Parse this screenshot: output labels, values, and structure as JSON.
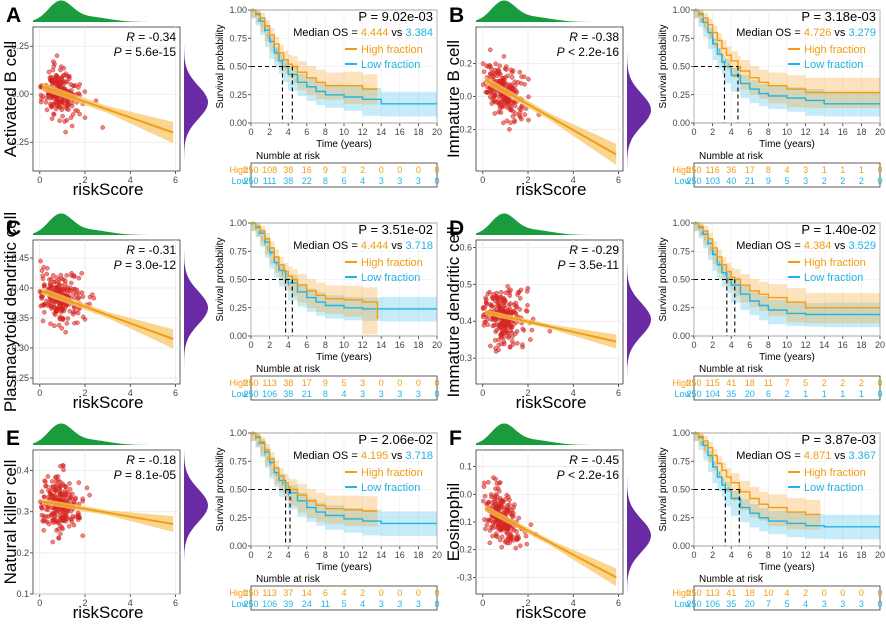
{
  "figure": {
    "colors": {
      "high": "#f39c12",
      "low": "#1fb4e6",
      "scatter_point": "#e41a1c",
      "regression_band": "#f7c76a",
      "density_top": "#1a9c3e",
      "density_right": "#6a2aa6"
    },
    "common": {
      "scatter_xlabel": "riskScore",
      "km_ylabel": "Survival probability",
      "km_xlabel": "Time (years)",
      "km_xticks": [
        0,
        2,
        4,
        6,
        8,
        10,
        12,
        14,
        16,
        18,
        20
      ],
      "km_yticks": [
        "0.00",
        "0.25",
        "0.50",
        "0.75",
        "1.00"
      ],
      "scatter_xticks": [
        0,
        2,
        4,
        6
      ],
      "median_prefix": "Median OS = ",
      "median_vs": " vs ",
      "legend_high": "High fraction",
      "legend_low": "Low fraction",
      "risk_title": "Numble at risk",
      "risk_high_label": "High",
      "risk_low_label": "Low",
      "r_prefix": "R",
      "p_prefix": "P"
    },
    "panels": [
      {
        "label": "A",
        "cell": "Activated B cell",
        "r": "= -0.34",
        "p": "= 5.6e-15",
        "km_p": "P = 9.02e-03",
        "median_high": "4.444",
        "median_low": "3.384",
        "risk_high": [
          250,
          108,
          38,
          16,
          9,
          3,
          2,
          0,
          0,
          0,
          0
        ],
        "risk_low": [
          250,
          111,
          38,
          22,
          8,
          6,
          4,
          3,
          3,
          3,
          0
        ]
      },
      {
        "label": "B",
        "cell": "Immature B cell",
        "r": "= -0.38",
        "p": "< 2.2e-16",
        "km_p": "P = 3.18e-03",
        "median_high": "4.726",
        "median_low": "3.279",
        "risk_high": [
          250,
          116,
          36,
          17,
          8,
          4,
          3,
          1,
          1,
          1,
          0
        ],
        "risk_low": [
          250,
          103,
          40,
          21,
          9,
          5,
          3,
          2,
          2,
          2,
          0
        ]
      },
      {
        "label": "C",
        "cell": "Plasmacytoid dendritic cell",
        "r": "= -0.31",
        "p": "= 3.0e-12",
        "km_p": "P = 3.51e-02",
        "median_high": "4.444",
        "median_low": "3.718",
        "risk_high": [
          250,
          113,
          38,
          17,
          9,
          5,
          3,
          0,
          0,
          0,
          0
        ],
        "risk_low": [
          250,
          106,
          38,
          21,
          8,
          4,
          3,
          3,
          3,
          3,
          0
        ]
      },
      {
        "label": "D",
        "cell": "Immature dendritic cell",
        "r": "= -0.29",
        "p": "= 3.5e-11",
        "km_p": "P = 1.40e-02",
        "median_high": "4.384",
        "median_low": "3.529",
        "risk_high": [
          250,
          115,
          41,
          18,
          11,
          7,
          5,
          2,
          2,
          2,
          0
        ],
        "risk_low": [
          250,
          104,
          35,
          20,
          6,
          2,
          1,
          1,
          1,
          1,
          0
        ]
      },
      {
        "label": "E",
        "cell": "Natural killer cell",
        "r": "= -0.18",
        "p": "= 8.1e-05",
        "km_p": "P = 2.06e-02",
        "median_high": "4.195",
        "median_low": "3.718",
        "risk_high": [
          250,
          113,
          37,
          14,
          6,
          4,
          2,
          0,
          0,
          0,
          0
        ],
        "risk_low": [
          250,
          106,
          39,
          24,
          11,
          5,
          4,
          3,
          3,
          3,
          0
        ]
      },
      {
        "label": "F",
        "cell": "Eosinophil",
        "r": "= -0.45",
        "p": "< 2.2e-16",
        "km_p": "P = 3.87e-03",
        "median_high": "4.871",
        "median_low": "3.367",
        "risk_high": [
          250,
          113,
          41,
          18,
          10,
          4,
          2,
          0,
          0,
          0,
          0
        ],
        "risk_low": [
          250,
          106,
          35,
          20,
          7,
          5,
          4,
          3,
          3,
          3,
          0
        ]
      }
    ]
  },
  "chart_data": [
    {
      "type": "scatter",
      "panel": "A",
      "title": "",
      "xlabel": "riskScore",
      "ylabel": "Activated B cell",
      "xlim": [
        -0.3,
        6.2
      ],
      "ylim": [
        -0.4,
        0.35
      ],
      "yticks": [
        -0.25,
        0.0,
        0.25
      ],
      "regression": {
        "x": [
          0.1,
          5.9
        ],
        "y": [
          0.04,
          -0.2
        ],
        "ci": 0.035
      },
      "r": -0.34,
      "p": "5.6e-15",
      "n_points": "~500"
    },
    {
      "type": "line",
      "panel": "A",
      "subtype": "kaplan-meier",
      "xlabel": "Time (years)",
      "ylabel": "Survival probability",
      "xlim": [
        0,
        20
      ],
      "ylim": [
        0,
        1
      ],
      "series": [
        {
          "name": "High fraction",
          "x": [
            0,
            0.5,
            1,
            1.5,
            2,
            2.5,
            3,
            3.5,
            4,
            4.44,
            5,
            6,
            7,
            8,
            10,
            12,
            13.6
          ],
          "y": [
            1,
            0.97,
            0.93,
            0.86,
            0.78,
            0.7,
            0.62,
            0.56,
            0.52,
            0.5,
            0.45,
            0.4,
            0.36,
            0.33,
            0.33,
            0.3,
            0.3
          ]
        },
        {
          "name": "Low fraction",
          "x": [
            0,
            0.5,
            1,
            1.5,
            2,
            2.5,
            3,
            3.38,
            4,
            5,
            6,
            7,
            8,
            10,
            12,
            14,
            20
          ],
          "y": [
            1,
            0.96,
            0.9,
            0.82,
            0.72,
            0.62,
            0.55,
            0.5,
            0.43,
            0.36,
            0.32,
            0.28,
            0.25,
            0.23,
            0.21,
            0.17,
            0.17
          ]
        }
      ],
      "median_os": {
        "high": 4.444,
        "low": 3.384
      },
      "p": "9.02e-03"
    },
    {
      "type": "scatter",
      "panel": "B",
      "title": "",
      "xlabel": "riskScore",
      "ylabel": "Immature B cell",
      "xlim": [
        -0.3,
        6.2
      ],
      "ylim": [
        -0.45,
        0.42
      ],
      "yticks": [
        -0.2,
        0.0,
        0.2
      ],
      "regression": {
        "x": [
          0.1,
          5.9
        ],
        "y": [
          0.1,
          -0.35
        ],
        "ci": 0.04
      },
      "r": -0.38,
      "p": "< 2.2e-16",
      "n_points": "~500"
    },
    {
      "type": "line",
      "panel": "B",
      "subtype": "kaplan-meier",
      "xlabel": "Time (years)",
      "ylabel": "Survival probability",
      "xlim": [
        0,
        20
      ],
      "ylim": [
        0,
        1
      ],
      "series": [
        {
          "name": "High fraction",
          "x": [
            0,
            0.5,
            1,
            1.5,
            2,
            2.5,
            3,
            3.5,
            4,
            4.73,
            5,
            6,
            7,
            8,
            10,
            12,
            20
          ],
          "y": [
            1,
            0.97,
            0.93,
            0.87,
            0.8,
            0.73,
            0.66,
            0.6,
            0.55,
            0.5,
            0.46,
            0.4,
            0.36,
            0.33,
            0.3,
            0.27,
            0.27
          ]
        },
        {
          "name": "Low fraction",
          "x": [
            0,
            0.5,
            1,
            1.5,
            2,
            2.5,
            3,
            3.28,
            4,
            5,
            6,
            7,
            8,
            10,
            12,
            14,
            20
          ],
          "y": [
            1,
            0.96,
            0.89,
            0.8,
            0.7,
            0.61,
            0.54,
            0.5,
            0.42,
            0.35,
            0.3,
            0.26,
            0.24,
            0.22,
            0.2,
            0.17,
            0.17
          ]
        }
      ],
      "median_os": {
        "high": 4.726,
        "low": 3.279
      },
      "p": "3.18e-03"
    },
    {
      "type": "scatter",
      "panel": "C",
      "title": "",
      "xlabel": "riskScore",
      "ylabel": "Plasmacytoid dendritic cell",
      "xlim": [
        -0.3,
        6.2
      ],
      "ylim": [
        0.24,
        0.48
      ],
      "yticks": [
        0.25,
        0.3,
        0.35,
        0.4,
        0.45
      ],
      "regression": {
        "x": [
          0.1,
          5.9
        ],
        "y": [
          0.395,
          0.315
        ],
        "ci": 0.01
      },
      "r": -0.31,
      "p": "3.0e-12",
      "n_points": "~500"
    },
    {
      "type": "line",
      "panel": "C",
      "subtype": "kaplan-meier",
      "xlabel": "Time (years)",
      "ylabel": "Survival probability",
      "xlim": [
        0,
        20
      ],
      "ylim": [
        0,
        1
      ],
      "series": [
        {
          "name": "High fraction",
          "x": [
            0,
            0.5,
            1,
            1.5,
            2,
            2.5,
            3,
            3.5,
            4,
            4.44,
            5,
            6,
            7,
            8,
            10,
            12,
            13.6
          ],
          "y": [
            1,
            0.97,
            0.93,
            0.86,
            0.78,
            0.7,
            0.63,
            0.57,
            0.53,
            0.5,
            0.45,
            0.4,
            0.36,
            0.33,
            0.32,
            0.3,
            0.15
          ]
        },
        {
          "name": "Low fraction",
          "x": [
            0,
            0.5,
            1,
            1.5,
            2,
            2.5,
            3,
            3.72,
            4,
            5,
            6,
            7,
            8,
            10,
            12,
            14,
            20
          ],
          "y": [
            1,
            0.96,
            0.91,
            0.83,
            0.74,
            0.65,
            0.58,
            0.5,
            0.47,
            0.39,
            0.34,
            0.3,
            0.27,
            0.25,
            0.24,
            0.24,
            0.24
          ]
        }
      ],
      "median_os": {
        "high": 4.444,
        "low": 3.718
      },
      "p": "3.51e-02"
    },
    {
      "type": "scatter",
      "panel": "D",
      "title": "",
      "xlabel": "riskScore",
      "ylabel": "Immature dendritic cell",
      "xlim": [
        -0.3,
        6.2
      ],
      "ylim": [
        0.23,
        0.62
      ],
      "yticks": [
        0.3,
        0.4,
        0.5,
        0.6
      ],
      "regression": {
        "x": [
          0.1,
          5.9
        ],
        "y": [
          0.425,
          0.345
        ],
        "ci": 0.012
      },
      "r": -0.29,
      "p": "3.5e-11",
      "n_points": "~500"
    },
    {
      "type": "line",
      "panel": "D",
      "subtype": "kaplan-meier",
      "xlabel": "Time (years)",
      "ylabel": "Survival probability",
      "xlim": [
        0,
        20
      ],
      "ylim": [
        0,
        1
      ],
      "series": [
        {
          "name": "High fraction",
          "x": [
            0,
            0.5,
            1,
            1.5,
            2,
            2.5,
            3,
            3.5,
            4,
            4.38,
            5,
            6,
            7,
            8,
            10,
            12,
            20
          ],
          "y": [
            1,
            0.97,
            0.93,
            0.86,
            0.78,
            0.7,
            0.63,
            0.57,
            0.52,
            0.5,
            0.45,
            0.4,
            0.37,
            0.34,
            0.3,
            0.25,
            0.25
          ]
        },
        {
          "name": "Low fraction",
          "x": [
            0,
            0.5,
            1,
            1.5,
            2,
            2.5,
            3,
            3.53,
            4,
            5,
            6,
            7,
            8,
            10,
            12,
            14,
            20
          ],
          "y": [
            1,
            0.96,
            0.9,
            0.82,
            0.72,
            0.63,
            0.56,
            0.5,
            0.45,
            0.37,
            0.31,
            0.27,
            0.23,
            0.2,
            0.19,
            0.19,
            0.19
          ]
        }
      ],
      "median_os": {
        "high": 4.384,
        "low": 3.529
      },
      "p": "1.40e-02"
    },
    {
      "type": "scatter",
      "panel": "E",
      "title": "",
      "xlabel": "riskScore",
      "ylabel": "Natural killer cell",
      "xlim": [
        -0.3,
        6.2
      ],
      "ylim": [
        0.1,
        0.45
      ],
      "yticks": [
        0.1,
        0.2,
        0.3,
        0.4
      ],
      "regression": {
        "x": [
          0.1,
          5.9
        ],
        "y": [
          0.325,
          0.27
        ],
        "ci": 0.012
      },
      "r": -0.18,
      "p": "8.1e-05",
      "n_points": "~500"
    },
    {
      "type": "line",
      "panel": "E",
      "subtype": "kaplan-meier",
      "xlabel": "Time (years)",
      "ylabel": "Survival probability",
      "xlim": [
        0,
        20
      ],
      "ylim": [
        0,
        1
      ],
      "series": [
        {
          "name": "High fraction",
          "x": [
            0,
            0.5,
            1,
            1.5,
            2,
            2.5,
            3,
            3.5,
            4,
            4.2,
            5,
            6,
            7,
            8,
            10,
            12,
            13.6
          ],
          "y": [
            1,
            0.97,
            0.92,
            0.85,
            0.77,
            0.69,
            0.62,
            0.56,
            0.52,
            0.5,
            0.45,
            0.4,
            0.36,
            0.33,
            0.32,
            0.31,
            0.31
          ]
        },
        {
          "name": "Low fraction",
          "x": [
            0,
            0.5,
            1,
            1.5,
            2,
            2.5,
            3,
            3.72,
            4,
            5,
            6,
            7,
            8,
            10,
            12,
            14,
            20
          ],
          "y": [
            1,
            0.96,
            0.91,
            0.83,
            0.74,
            0.65,
            0.58,
            0.5,
            0.47,
            0.4,
            0.34,
            0.3,
            0.27,
            0.24,
            0.22,
            0.2,
            0.2
          ]
        }
      ],
      "median_os": {
        "high": 4.195,
        "low": 3.718
      },
      "p": "2.06e-02"
    },
    {
      "type": "scatter",
      "panel": "F",
      "title": "",
      "xlabel": "riskScore",
      "ylabel": "Eosinophil",
      "xlim": [
        -0.3,
        6.2
      ],
      "ylim": [
        -0.36,
        0.16
      ],
      "yticks": [
        -0.3,
        -0.2,
        -0.1,
        0.0,
        0.1
      ],
      "regression": {
        "x": [
          0.1,
          5.9
        ],
        "y": [
          -0.05,
          -0.3
        ],
        "ci": 0.02
      },
      "r": -0.45,
      "p": "< 2.2e-16",
      "n_points": "~500"
    },
    {
      "type": "line",
      "panel": "F",
      "subtype": "kaplan-meier",
      "xlabel": "Time (years)",
      "ylabel": "Survival probability",
      "xlim": [
        0,
        20
      ],
      "ylim": [
        0,
        1
      ],
      "series": [
        {
          "name": "High fraction",
          "x": [
            0,
            0.5,
            1,
            1.5,
            2,
            2.5,
            3,
            3.5,
            4,
            4.87,
            5,
            6,
            7,
            8,
            10,
            12,
            13.6
          ],
          "y": [
            1,
            0.97,
            0.93,
            0.87,
            0.8,
            0.73,
            0.67,
            0.61,
            0.56,
            0.5,
            0.48,
            0.42,
            0.37,
            0.34,
            0.3,
            0.28,
            0.28
          ]
        },
        {
          "name": "Low fraction",
          "x": [
            0,
            0.5,
            1,
            1.5,
            2,
            2.5,
            3,
            3.37,
            4,
            5,
            6,
            7,
            8,
            10,
            12,
            14,
            20
          ],
          "y": [
            1,
            0.96,
            0.89,
            0.8,
            0.7,
            0.61,
            0.54,
            0.5,
            0.42,
            0.34,
            0.29,
            0.25,
            0.22,
            0.2,
            0.18,
            0.17,
            0.17
          ]
        }
      ],
      "median_os": {
        "high": 4.871,
        "low": 3.367
      },
      "p": "3.87e-03"
    }
  ]
}
